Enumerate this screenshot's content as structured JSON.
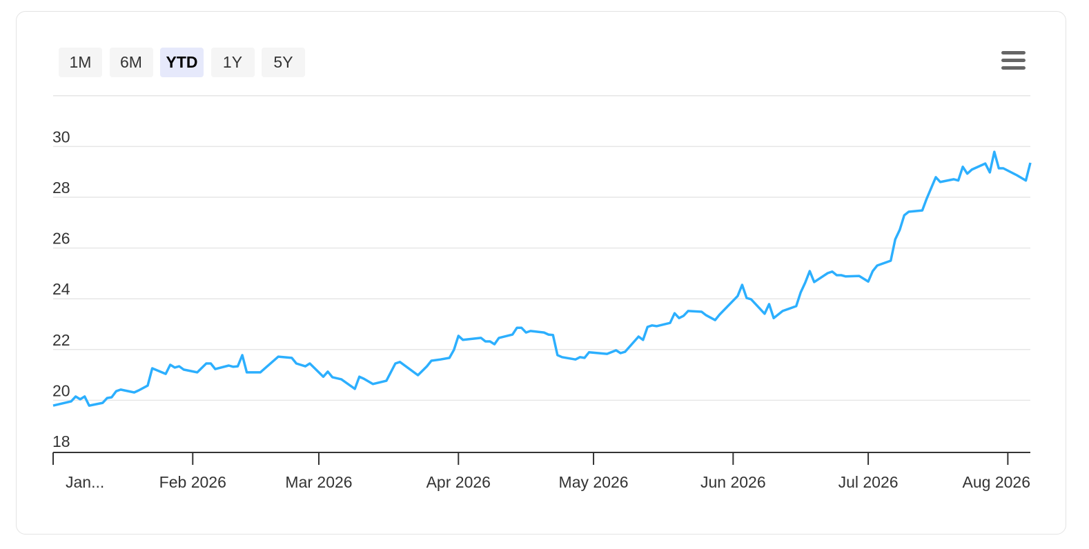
{
  "range_buttons": [
    {
      "label": "1M",
      "selected": false
    },
    {
      "label": "6M",
      "selected": false
    },
    {
      "label": "YTD",
      "selected": true
    },
    {
      "label": "1Y",
      "selected": false
    },
    {
      "label": "5Y",
      "selected": false
    }
  ],
  "chart_data": {
    "type": "line",
    "xlim": [
      0,
      217
    ],
    "xticks": [
      {
        "value": 0,
        "label": "Jan..."
      },
      {
        "value": 31,
        "label": "Feb 2026"
      },
      {
        "value": 59,
        "label": "Mar 2026"
      },
      {
        "value": 90,
        "label": "Apr 2026"
      },
      {
        "value": 120,
        "label": "May 2026"
      },
      {
        "value": 151,
        "label": "Jun 2026"
      },
      {
        "value": 181,
        "label": "Jul 2026"
      },
      {
        "value": 212,
        "label": "Aug 2026"
      }
    ],
    "ylim": [
      18,
      32
    ],
    "yticks": [
      18,
      20,
      22,
      24,
      26,
      28,
      30
    ],
    "grid": true,
    "series": [
      {
        "color": "#2caffe",
        "x": [
          0,
          4,
          5,
          6,
          7,
          8,
          11,
          12,
          13,
          14,
          15,
          18,
          19,
          21,
          22,
          25,
          26,
          27,
          28,
          29,
          32,
          34,
          35,
          36,
          39,
          40,
          41,
          42,
          43,
          46,
          50,
          53,
          54,
          56,
          57,
          60,
          61,
          62,
          64,
          67,
          68,
          69,
          71,
          74,
          76,
          77,
          81,
          83,
          84,
          86,
          88,
          89,
          90,
          91,
          95,
          96,
          97,
          98,
          99,
          102,
          103,
          104,
          105,
          106,
          109,
          110,
          111,
          112,
          113,
          116,
          117,
          118,
          119,
          123,
          125,
          126,
          127,
          130,
          131,
          132,
          133,
          134,
          137,
          138,
          139,
          140,
          141,
          144,
          145,
          147,
          148,
          152,
          153,
          154,
          155,
          158,
          159,
          160,
          162,
          165,
          166,
          167,
          168,
          169,
          172,
          173,
          174,
          175,
          176,
          179,
          181,
          182,
          183,
          186,
          187,
          188,
          189,
          190,
          193,
          194,
          196,
          197,
          200,
          201,
          202,
          203,
          204,
          207,
          208,
          209,
          210,
          211,
          214,
          216,
          217
        ],
        "values": [
          19.79,
          19.96,
          20.15,
          20.04,
          20.15,
          19.79,
          19.9,
          20.09,
          20.12,
          20.36,
          20.42,
          20.31,
          20.39,
          20.58,
          21.26,
          21.04,
          21.4,
          21.29,
          21.34,
          21.21,
          21.1,
          21.45,
          21.45,
          21.23,
          21.37,
          21.32,
          21.34,
          21.78,
          21.1,
          21.1,
          21.72,
          21.67,
          21.45,
          21.34,
          21.45,
          20.93,
          21.13,
          20.91,
          20.83,
          20.45,
          20.93,
          20.85,
          20.64,
          20.77,
          21.45,
          21.51,
          20.99,
          21.34,
          21.56,
          21.61,
          21.67,
          21.99,
          22.54,
          22.38,
          22.46,
          22.32,
          22.32,
          22.21,
          22.46,
          22.59,
          22.86,
          22.86,
          22.67,
          22.73,
          22.67,
          22.59,
          22.57,
          21.78,
          21.7,
          21.61,
          21.7,
          21.67,
          21.89,
          21.83,
          21.97,
          21.86,
          21.91,
          22.51,
          22.38,
          22.89,
          22.95,
          22.92,
          23.05,
          23.43,
          23.24,
          23.33,
          23.52,
          23.49,
          23.35,
          23.16,
          23.38,
          24.11,
          24.55,
          24.03,
          23.98,
          23.41,
          23.79,
          23.24,
          23.52,
          23.71,
          24.25,
          24.63,
          25.09,
          24.66,
          25.01,
          25.07,
          24.93,
          24.93,
          24.88,
          24.9,
          24.68,
          25.09,
          25.31,
          25.5,
          26.34,
          26.72,
          27.29,
          27.43,
          27.48,
          27.95,
          28.79,
          28.6,
          28.71,
          28.66,
          29.2,
          28.93,
          29.09,
          29.33,
          28.98,
          29.79,
          29.14,
          29.14,
          28.87,
          28.66,
          29.36
        ]
      }
    ]
  }
}
